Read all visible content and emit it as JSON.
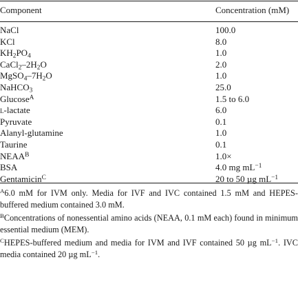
{
  "table": {
    "headers": {
      "component": "Component",
      "concentration": "Concentration (mM)"
    },
    "rows": [
      {
        "component": "NaCl",
        "value": "100.0"
      },
      {
        "component": "KCl",
        "value": "8.0"
      },
      {
        "component_parts": [
          "KH",
          "2",
          "PO",
          "4"
        ],
        "value": "1.0"
      },
      {
        "component_parts": [
          "CaCl",
          "2",
          "–2H",
          "2",
          "O"
        ],
        "value": "2.0"
      },
      {
        "component_parts": [
          "MgSO",
          "4",
          "–7H",
          "2",
          "O"
        ],
        "value": "1.0"
      },
      {
        "component_parts": [
          "NaHCO",
          "3"
        ],
        "value": "25.0"
      },
      {
        "component": "Glucose",
        "marker": "A",
        "value": "1.5 to 6.0"
      },
      {
        "component_prefix": "l",
        "component": "-lactate",
        "value": "6.0"
      },
      {
        "component": "Pyruvate",
        "value": "0.1"
      },
      {
        "component": "Alanyl-glutamine",
        "value": "1.0"
      },
      {
        "component": "Taurine",
        "value": "0.1"
      },
      {
        "component": "NEAA",
        "marker": "B",
        "value": "1.0×"
      },
      {
        "component": "BSA",
        "value_parts": [
          "4.0 mg mL",
          "−1"
        ]
      },
      {
        "component": "Gentamicin",
        "marker": "C",
        "value_parts": [
          "20 to 50 µg mL",
          "−1"
        ]
      }
    ]
  },
  "footnotes": {
    "a": {
      "marker": "A",
      "text": "6.0 mM for IVM only. Media for IVF and IVC contained 1.5 mM and HEPES-buffered medium contained 3.0 mM."
    },
    "b": {
      "marker": "B",
      "text": "Concentrations of nonessential amino acids (NEAA, 0.1 mM each) found in minimum essential medium (MEM)."
    },
    "c": {
      "marker": "C",
      "text_before": "HEPES-buffered medium and media for IVM and IVF contained 50 µg mL",
      "exp1": "−1",
      "text_mid": ". IVC media contained 20 µg mL",
      "exp2": "−1",
      "text_after": "."
    }
  }
}
